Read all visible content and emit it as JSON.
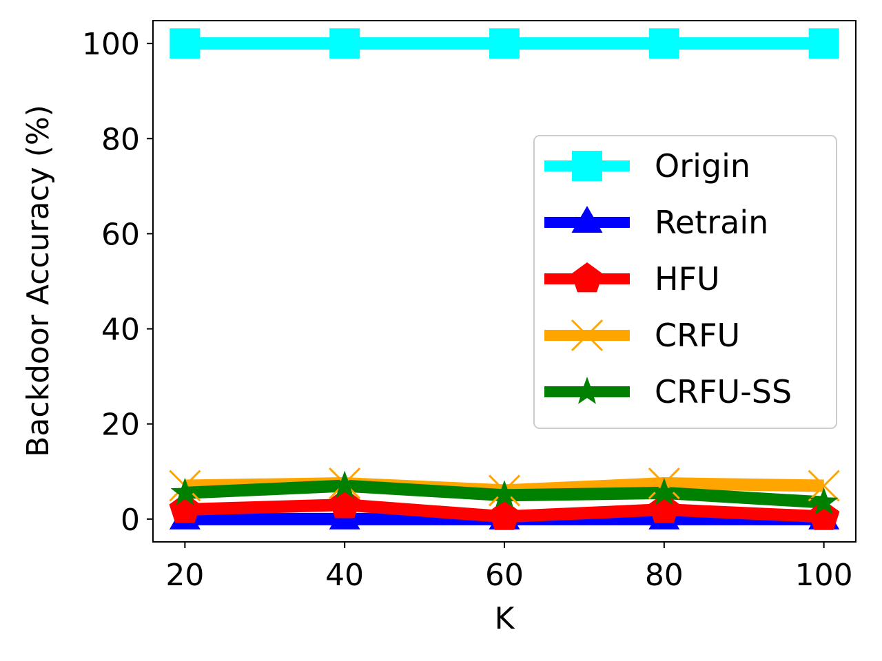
{
  "chart_data": {
    "type": "line",
    "xlabel": "K",
    "ylabel": "Backdoor Accuracy (%)",
    "x": [
      20,
      40,
      60,
      80,
      100
    ],
    "xlim": [
      16,
      104
    ],
    "ylim": [
      -4.8,
      104.8
    ],
    "xticks": [
      "20",
      "40",
      "60",
      "80",
      "100"
    ],
    "yticks": [
      "0",
      "20",
      "40",
      "60",
      "80",
      "100"
    ],
    "grid": false,
    "legend_position": "center-right",
    "series": [
      {
        "name": "Origin",
        "values": [
          100,
          100,
          100,
          100,
          100
        ],
        "color": "#00ffff",
        "marker": "square"
      },
      {
        "name": "Retrain",
        "values": [
          0,
          0,
          0,
          0,
          0
        ],
        "color": "#0000ff",
        "marker": "triangle-up"
      },
      {
        "name": "HFU",
        "values": [
          2,
          3,
          0.5,
          2,
          0.5
        ],
        "color": "#ff0000",
        "marker": "pentagon"
      },
      {
        "name": "CRFU",
        "values": [
          7,
          7.5,
          6,
          7.5,
          7
        ],
        "color": "#ffa500",
        "marker": "x"
      },
      {
        "name": "CRFU-SS",
        "values": [
          5.5,
          7,
          5,
          5.5,
          3.5
        ],
        "color": "#008000",
        "marker": "star"
      }
    ]
  }
}
